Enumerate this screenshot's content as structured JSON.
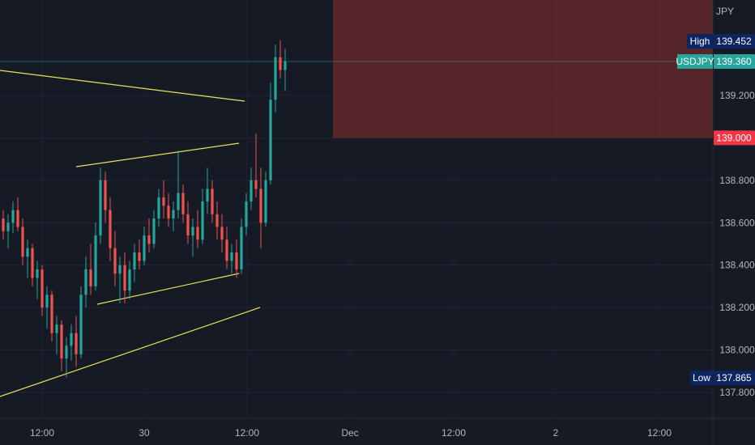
{
  "chart_data": {
    "type": "candlestick",
    "symbol": "USDJPY",
    "currency": "JPY",
    "last_price": 139.36,
    "high": {
      "label": "High",
      "value": 139.452
    },
    "low": {
      "label": "Low",
      "value": 137.865
    },
    "alert_level": {
      "value": 139.0,
      "label": "139.000"
    },
    "y_ticks": [
      "139.200",
      "138.800",
      "138.600",
      "138.400",
      "138.200",
      "138.000",
      "137.800"
    ],
    "x_ticks": [
      "12:00",
      "30",
      "12:00",
      "Dec",
      "12:00",
      "2",
      "12:00"
    ],
    "ylim": [
      137.7,
      139.62
    ],
    "grid": true,
    "colors": {
      "up": "#26a69a",
      "down": "#ef5350",
      "trendline": "#e8e35a",
      "zone": "#8b2f2f",
      "background": "#161a25",
      "last_price_badge": "#26a69a",
      "alert_badge": "#f23645",
      "hilo_badge": "#0d2560"
    },
    "candles_ohlc": [
      [
        138.62,
        138.66,
        138.52,
        138.56
      ],
      [
        138.56,
        138.64,
        138.48,
        138.6
      ],
      [
        138.6,
        138.7,
        138.55,
        138.66
      ],
      [
        138.66,
        138.72,
        138.56,
        138.58
      ],
      [
        138.58,
        138.62,
        138.4,
        138.44
      ],
      [
        138.44,
        138.52,
        138.34,
        138.48
      ],
      [
        138.48,
        138.5,
        138.3,
        138.34
      ],
      [
        138.34,
        138.42,
        138.24,
        138.38
      ],
      [
        138.38,
        138.4,
        138.16,
        138.2
      ],
      [
        138.2,
        138.3,
        138.1,
        138.26
      ],
      [
        138.26,
        138.28,
        138.04,
        138.08
      ],
      [
        138.08,
        138.16,
        137.98,
        138.12
      ],
      [
        138.12,
        138.14,
        137.9,
        137.96
      ],
      [
        137.96,
        138.06,
        137.87,
        138.02
      ],
      [
        138.02,
        138.12,
        137.95,
        138.08
      ],
      [
        138.08,
        138.16,
        137.92,
        137.98
      ],
      [
        137.98,
        138.3,
        137.96,
        138.26
      ],
      [
        138.26,
        138.44,
        138.2,
        138.38
      ],
      [
        138.38,
        138.5,
        138.26,
        138.3
      ],
      [
        138.3,
        138.6,
        138.28,
        138.54
      ],
      [
        138.54,
        138.86,
        138.5,
        138.8
      ],
      [
        138.8,
        138.84,
        138.6,
        138.66
      ],
      [
        138.66,
        138.72,
        138.42,
        138.48
      ],
      [
        138.48,
        138.56,
        138.3,
        138.36
      ],
      [
        138.36,
        138.44,
        138.22,
        138.4
      ],
      [
        138.4,
        138.46,
        138.22,
        138.28
      ],
      [
        138.28,
        138.42,
        138.24,
        138.38
      ],
      [
        138.38,
        138.5,
        138.32,
        138.46
      ],
      [
        138.46,
        138.52,
        138.38,
        138.42
      ],
      [
        138.42,
        138.58,
        138.4,
        138.54
      ],
      [
        138.54,
        138.62,
        138.46,
        138.5
      ],
      [
        138.5,
        138.66,
        138.48,
        138.62
      ],
      [
        138.62,
        138.76,
        138.58,
        138.72
      ],
      [
        138.72,
        138.8,
        138.62,
        138.68
      ],
      [
        138.68,
        138.74,
        138.58,
        138.62
      ],
      [
        138.62,
        138.7,
        138.56,
        138.66
      ],
      [
        138.66,
        138.94,
        138.62,
        138.74
      ],
      [
        138.74,
        138.78,
        138.6,
        138.64
      ],
      [
        138.64,
        138.7,
        138.5,
        138.54
      ],
      [
        138.54,
        138.62,
        138.44,
        138.58
      ],
      [
        138.58,
        138.66,
        138.48,
        138.52
      ],
      [
        138.52,
        138.76,
        138.5,
        138.7
      ],
      [
        138.7,
        138.86,
        138.64,
        138.76
      ],
      [
        138.76,
        138.8,
        138.6,
        138.64
      ],
      [
        138.64,
        138.7,
        138.52,
        138.58
      ],
      [
        138.58,
        138.64,
        138.46,
        138.52
      ],
      [
        138.52,
        138.58,
        138.38,
        138.42
      ],
      [
        138.42,
        138.5,
        138.36,
        138.46
      ],
      [
        138.46,
        138.52,
        138.34,
        138.38
      ],
      [
        138.38,
        138.62,
        138.36,
        138.58
      ],
      [
        138.58,
        138.74,
        138.54,
        138.7
      ],
      [
        138.7,
        138.86,
        138.66,
        138.8
      ],
      [
        138.8,
        139.02,
        138.72,
        138.76
      ],
      [
        138.76,
        138.86,
        138.48,
        138.6
      ],
      [
        138.6,
        138.84,
        138.58,
        138.8
      ],
      [
        138.8,
        139.26,
        138.78,
        139.18
      ],
      [
        139.18,
        139.44,
        139.12,
        139.38
      ],
      [
        139.38,
        139.46,
        139.28,
        139.32
      ],
      [
        139.32,
        139.42,
        139.22,
        139.36
      ]
    ]
  }
}
